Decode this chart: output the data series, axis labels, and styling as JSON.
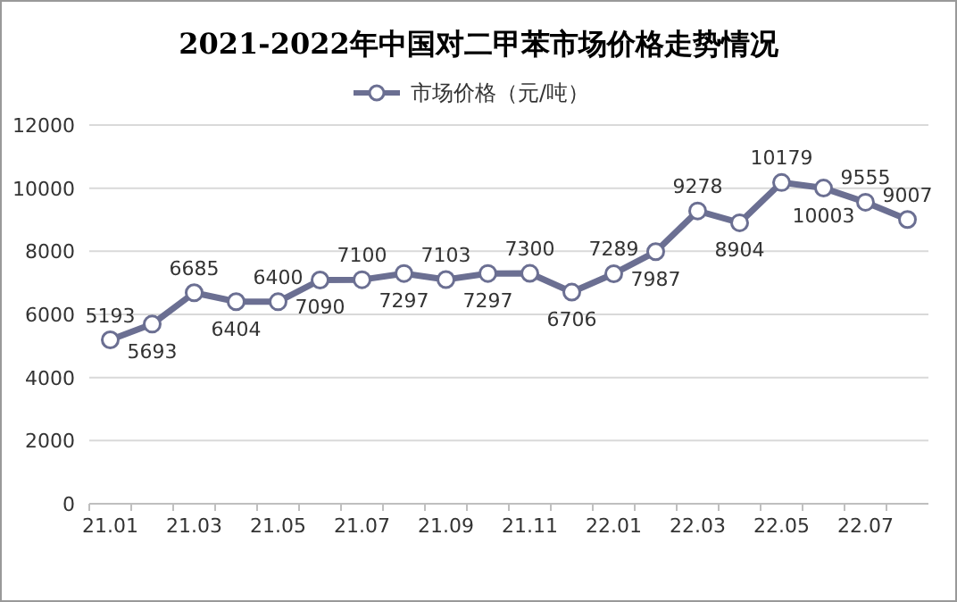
{
  "chart_data": {
    "type": "line",
    "title": "2021-2022年中国对二甲苯市场价格走势情况",
    "categories": [
      "21.01",
      null,
      "21.03",
      null,
      "21.05",
      null,
      "21.07",
      null,
      "21.09",
      null,
      "21.11",
      null,
      "22.01",
      null,
      "22.03",
      null,
      "22.05",
      null,
      "22.07",
      null
    ],
    "series": [
      {
        "name": "市场价格（元/吨）",
        "color": "#6b6f92",
        "values": [
          5193,
          5693,
          6685,
          6404,
          6400,
          7090,
          7100,
          7297,
          7103,
          7297,
          7300,
          6706,
          7289,
          7987,
          9278,
          8904,
          10179,
          10003,
          9555,
          9007
        ]
      }
    ],
    "ylim": [
      0,
      12000
    ],
    "yticks": [
      0,
      2000,
      4000,
      6000,
      8000,
      10000,
      12000
    ],
    "grid": "y",
    "legend": "top",
    "marker": "circle",
    "line_style": "solid",
    "data_labels": true
  }
}
